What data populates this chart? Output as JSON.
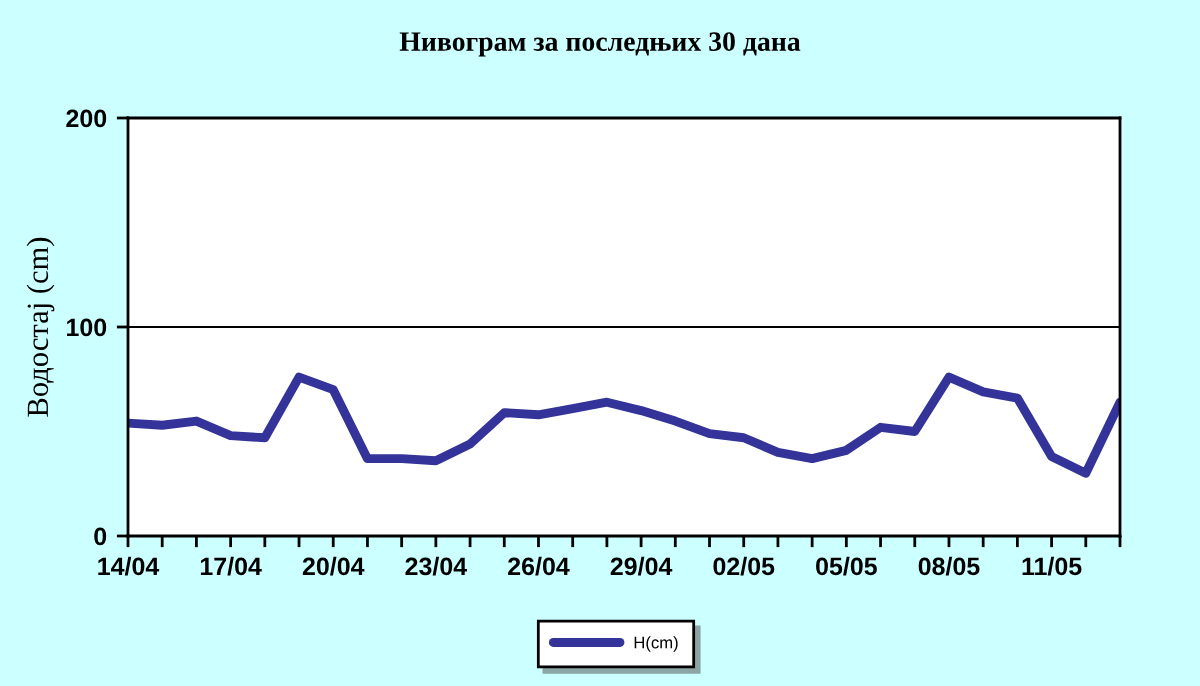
{
  "chart_data": {
    "type": "line",
    "title": "Нивограм за последњих 30 дана",
    "ylabel": "Водостај (cm)",
    "categories": [
      "14/04",
      null,
      null,
      "17/04",
      null,
      null,
      "20/04",
      null,
      null,
      "23/04",
      null,
      null,
      "26/04",
      null,
      null,
      "29/04",
      null,
      null,
      "02/05",
      null,
      null,
      "05/05",
      null,
      null,
      "08/05",
      null,
      null,
      "11/05",
      null,
      null
    ],
    "series": [
      {
        "name": "H(cm)",
        "color": "#333399",
        "values": [
          54,
          53,
          55,
          48,
          47,
          76,
          70,
          37,
          37,
          36,
          44,
          59,
          58,
          61,
          64,
          60,
          55,
          49,
          47,
          40,
          37,
          41,
          52,
          50,
          76,
          69,
          66,
          38,
          30,
          64
        ]
      }
    ],
    "ylim": [
      0,
      200
    ],
    "yticks": [
      0,
      100,
      200
    ],
    "grid": "y",
    "legend": "bottom",
    "marker": "none",
    "line_style": "solid"
  }
}
